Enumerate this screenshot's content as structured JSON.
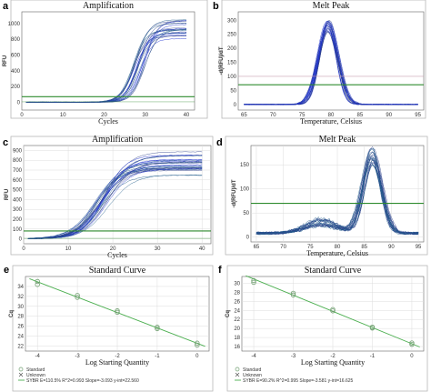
{
  "colors": {
    "curve_dark": "#2d3f8c",
    "curve_blue": "#1b2fd0",
    "curve_teal": "#1f5a8a",
    "threshold": "#2e8b2e",
    "baseline_pink": "#c9a0b0",
    "fit_line": "#4caf50",
    "standard_marker": "#6f9e6f"
  },
  "chart_data": [
    {
      "panel": "a",
      "type": "line",
      "title": "Amplification",
      "xlabel": "Cycles",
      "ylabel": "RFU",
      "xlim": [
        0,
        42
      ],
      "ylim": [
        -100,
        1150
      ],
      "xticks": [
        0,
        10,
        20,
        30,
        40
      ],
      "yticks": [
        0,
        200,
        400,
        600,
        800,
        1000
      ],
      "curves": {
        "count": 22,
        "midpoint_range": [
          27,
          30
        ],
        "plateau_range": [
          780,
          1070
        ]
      },
      "threshold": 70,
      "grid": false
    },
    {
      "panel": "b",
      "type": "line",
      "title": "Melt Peak",
      "xlabel": "Temperature, Celsius",
      "ylabel": "-d(RFU)/dT",
      "xlim": [
        64,
        96
      ],
      "ylim": [
        -20,
        330
      ],
      "xticks": [
        65,
        70,
        75,
        80,
        85,
        90,
        95
      ],
      "yticks": [
        0,
        50,
        100,
        150,
        200,
        250,
        300
      ],
      "curves": {
        "count": 22,
        "peak_temperature": 79.5,
        "peak_range": [
          255,
          300
        ]
      },
      "threshold": 70,
      "threshold_upper": 100,
      "grid": false
    },
    {
      "panel": "c",
      "type": "line",
      "title": "Amplification",
      "xlabel": "Cycles",
      "ylabel": "RFU",
      "xlim": [
        0,
        42
      ],
      "ylim": [
        -50,
        950
      ],
      "xticks": [
        0,
        10,
        20,
        30,
        40
      ],
      "yticks": [
        0,
        100,
        200,
        300,
        400,
        500,
        600,
        700,
        800,
        900
      ],
      "curves": {
        "count": 28,
        "midpoint_range": [
          16,
          19
        ],
        "plateau_range": [
          640,
          890
        ]
      },
      "threshold": 80,
      "grid": true
    },
    {
      "panel": "d",
      "type": "line",
      "title": "Melt Peak",
      "xlabel": "Temperature, Celsius",
      "ylabel": "-d(RFU)/dT",
      "xlim": [
        64,
        96
      ],
      "ylim": [
        -10,
        190
      ],
      "xticks": [
        65,
        70,
        75,
        80,
        85,
        90,
        95
      ],
      "yticks": [
        0,
        50,
        100,
        150
      ],
      "curves": {
        "count": 22,
        "peak_temperature": 86.5,
        "peak_range": [
          140,
          178
        ],
        "shoulder_temperature": 77
      },
      "threshold": 70,
      "grid": true
    },
    {
      "panel": "e",
      "type": "scatter",
      "title": "Standard Curve",
      "xlabel": "Log Starting Quantity",
      "ylabel": "Cq",
      "xlim": [
        -4.3,
        0.3
      ],
      "ylim": [
        21,
        36
      ],
      "xticks": [
        -4,
        -3,
        -2,
        -1,
        0
      ],
      "yticks": [
        22,
        24,
        26,
        28,
        30,
        32,
        34
      ],
      "points": [
        {
          "x": -4,
          "y": 35.0
        },
        {
          "x": -4,
          "y": 34.4
        },
        {
          "x": -3,
          "y": 32.2
        },
        {
          "x": -3,
          "y": 31.8
        },
        {
          "x": -2,
          "y": 29.1
        },
        {
          "x": -2,
          "y": 28.8
        },
        {
          "x": -1,
          "y": 25.8
        },
        {
          "x": -1,
          "y": 25.5
        },
        {
          "x": 0,
          "y": 22.6
        },
        {
          "x": 0,
          "y": 22.2
        }
      ],
      "fit": {
        "slope": -3.093,
        "intercept": 22.56
      },
      "legend": [
        "Standard",
        "Unknown",
        "SYBR  E=110.5% R^2=0.993 Slope=-3.093 y-int=22.560"
      ]
    },
    {
      "panel": "f",
      "type": "scatter",
      "title": "Standard Curve",
      "xlabel": "Log Starting Quantity",
      "ylabel": "Cq",
      "xlim": [
        -4.3,
        0.3
      ],
      "ylim": [
        15,
        31.5
      ],
      "xticks": [
        -4,
        -3,
        -2,
        -1,
        0
      ],
      "yticks": [
        16,
        18,
        20,
        22,
        24,
        26,
        28,
        30
      ],
      "points": [
        {
          "x": -4,
          "y": 30.6
        },
        {
          "x": -4,
          "y": 30.2
        },
        {
          "x": -3,
          "y": 27.8
        },
        {
          "x": -3,
          "y": 27.4
        },
        {
          "x": -2,
          "y": 24.2
        },
        {
          "x": -2,
          "y": 23.9
        },
        {
          "x": -1,
          "y": 20.3
        },
        {
          "x": -1,
          "y": 20.1
        },
        {
          "x": 0,
          "y": 16.8
        },
        {
          "x": 0,
          "y": 16.5
        }
      ],
      "fit": {
        "slope": -3.581,
        "intercept": 16.625
      },
      "legend": [
        "Standard",
        "Unknown",
        "SYBR  E=90.2% R^2=0.995 Slope=-3.581 y-int=16.625"
      ]
    }
  ]
}
